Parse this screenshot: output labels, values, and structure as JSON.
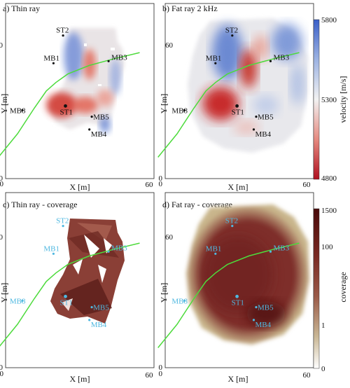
{
  "panels": [
    {
      "id": "a",
      "title": "a) Thin ray",
      "map": "thin-velocity",
      "xlabel": "X [m]",
      "ylabel": "Y [m]",
      "ticks": {
        "x0": "0",
        "x60": "60",
        "y0": "0",
        "y60": "60"
      },
      "label_color": "dark",
      "stations": [
        {
          "name": "ST2",
          "x": 24,
          "y": 67
        },
        {
          "name": "MB1",
          "x": 20,
          "y": 54
        },
        {
          "name": "MB3",
          "x": 43,
          "y": 55
        },
        {
          "name": "MB8",
          "x": 7,
          "y": 32
        },
        {
          "name": "ST1",
          "x": 25,
          "y": 34
        },
        {
          "name": "MB5",
          "x": 36,
          "y": 29
        },
        {
          "name": "MB4",
          "x": 35,
          "y": 23
        }
      ]
    },
    {
      "id": "b",
      "title": "b) Fat ray 2 kHz",
      "map": "fat-velocity",
      "xlabel": "X [m]",
      "ylabel": "Y [m]",
      "ticks": {
        "x0": "0",
        "x60": "60",
        "y0": "0",
        "y60": "60"
      },
      "label_color": "dark",
      "stations": [
        {
          "name": "ST2",
          "x": 28,
          "y": 67
        },
        {
          "name": "MB1",
          "x": 21,
          "y": 54
        },
        {
          "name": "MB3",
          "x": 44,
          "y": 55
        },
        {
          "name": "MB8",
          "x": 8,
          "y": 32
        },
        {
          "name": "ST1",
          "x": 30,
          "y": 34
        },
        {
          "name": "MB5",
          "x": 38,
          "y": 29
        },
        {
          "name": "MB4",
          "x": 37,
          "y": 23
        }
      ]
    },
    {
      "id": "c",
      "title": "c) Thin ray - coverage",
      "map": "thin-coverage",
      "xlabel": "X [m]",
      "ylabel": "Y [m]",
      "ticks": {
        "x0": "0",
        "x60": "60",
        "y0": "0",
        "y60": "60"
      },
      "label_color": "light",
      "stations": [
        {
          "name": "ST2",
          "x": 24,
          "y": 67
        },
        {
          "name": "MB1",
          "x": 20,
          "y": 54
        },
        {
          "name": "MB3",
          "x": 43,
          "y": 55
        },
        {
          "name": "MB8",
          "x": 7,
          "y": 32
        },
        {
          "name": "ST1",
          "x": 25,
          "y": 34
        },
        {
          "name": "MB5",
          "x": 36,
          "y": 29
        },
        {
          "name": "MB4",
          "x": 35,
          "y": 23
        }
      ]
    },
    {
      "id": "d",
      "title": "d) Fat ray - coverage",
      "map": "fat-coverage",
      "xlabel": "X [m]",
      "ylabel": "Y [m]",
      "ticks": {
        "x0": "0",
        "x60": "60",
        "y0": "0",
        "y60": "60"
      },
      "label_color": "light",
      "stations": [
        {
          "name": "ST2",
          "x": 28,
          "y": 67
        },
        {
          "name": "MB1",
          "x": 21,
          "y": 54
        },
        {
          "name": "MB3",
          "x": 44,
          "y": 55
        },
        {
          "name": "MB8",
          "x": 8,
          "y": 32
        },
        {
          "name": "ST1",
          "x": 30,
          "y": 34
        },
        {
          "name": "MB5",
          "x": 38,
          "y": 29
        },
        {
          "name": "MB4",
          "x": 37,
          "y": 23
        }
      ]
    }
  ],
  "velocity_colorbar": {
    "label": "velocity [m/s]",
    "ticks": [
      "5800",
      "5300",
      "4800"
    ],
    "colors": {
      "top": "#3a5fc8",
      "mid": "#f2f2f2",
      "bottom": "#b01020"
    }
  },
  "coverage_colorbar": {
    "label": "coverage",
    "ticks": [
      "1500",
      "100",
      "1",
      "0"
    ],
    "colors": {
      "top": "#4a0a0a",
      "mid": "#8a3a30",
      "bottom": "#ffffff"
    }
  },
  "fault_line_color": "#4ddb3c",
  "chart_data": [
    {
      "type": "heatmap",
      "title": "a) Thin ray",
      "xlabel": "X [m]",
      "ylabel": "Y [m]",
      "xlim": [
        0,
        60
      ],
      "ylim": [
        0,
        60
      ]
    },
    {
      "type": "heatmap",
      "title": "b) Fat ray 2 kHz",
      "xlabel": "X [m]",
      "ylabel": "Y [m]",
      "xlim": [
        0,
        60
      ],
      "ylim": [
        0,
        60
      ]
    },
    {
      "type": "heatmap",
      "title": "c) Thin ray - coverage",
      "xlabel": "X [m]",
      "ylabel": "Y [m]",
      "xlim": [
        0,
        60
      ],
      "ylim": [
        0,
        60
      ]
    },
    {
      "type": "heatmap",
      "title": "d) Fat ray - coverage",
      "xlabel": "X [m]",
      "ylabel": "Y [m]",
      "xlim": [
        0,
        60
      ],
      "ylim": [
        0,
        60
      ]
    },
    {
      "type": "line",
      "name": "fault trace",
      "x": [
        -3,
        5,
        12,
        17,
        21,
        26,
        35,
        45,
        56
      ],
      "y": [
        10,
        21,
        33,
        41,
        45,
        49,
        53,
        56,
        59
      ]
    }
  ]
}
